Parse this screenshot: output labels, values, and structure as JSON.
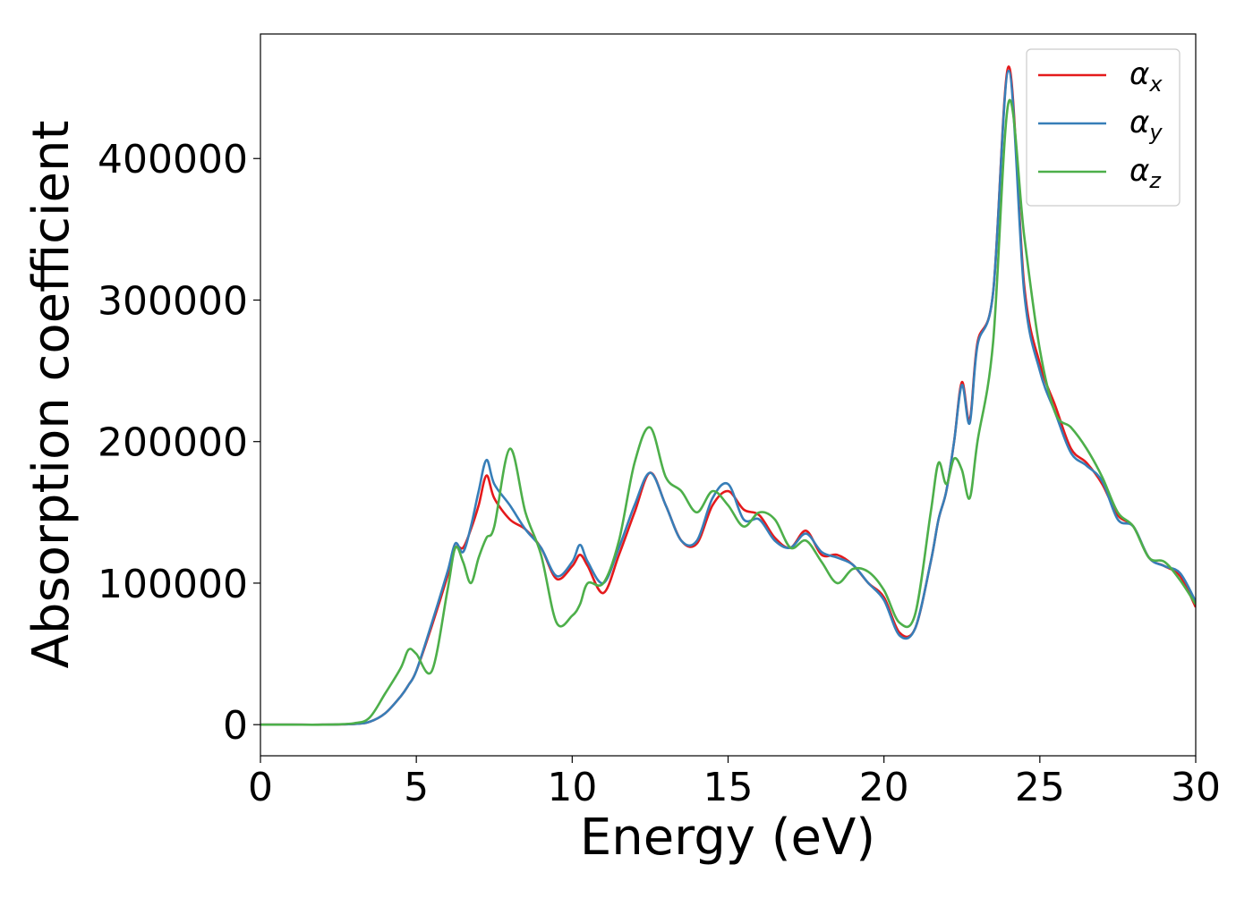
{
  "chart_data": {
    "type": "line",
    "xlabel": "Energy (eV)",
    "ylabel": "Absorption coefficient",
    "xlim": [
      0,
      30
    ],
    "xticks": [
      0,
      5,
      10,
      15,
      20,
      25,
      30
    ],
    "ylim": [
      -22000,
      488000
    ],
    "yticks": [
      0,
      100000,
      200000,
      300000,
      400000
    ],
    "legend": "upper right",
    "grid": false,
    "x": [
      0,
      1,
      2,
      3,
      3.5,
      4,
      4.5,
      4.75,
      5,
      5.5,
      6,
      6.25,
      6.5,
      6.75,
      7,
      7.25,
      7.5,
      8,
      8.5,
      9,
      9.5,
      10,
      10.25,
      10.5,
      11,
      11.5,
      12,
      12.5,
      13,
      13.5,
      14,
      14.5,
      15,
      15.5,
      16,
      16.5,
      17,
      17.5,
      18,
      18.5,
      19,
      19.5,
      20,
      20.5,
      21,
      21.5,
      21.75,
      22,
      22.25,
      22.5,
      22.75,
      23,
      23.5,
      24,
      24.5,
      25,
      25.5,
      26,
      26.5,
      27,
      27.5,
      28,
      28.5,
      29,
      29.5,
      30
    ],
    "series": [
      {
        "name": "αx",
        "color": "#e41a1c",
        "values": [
          0,
          0,
          0,
          500,
          2000,
          8000,
          20000,
          28000,
          38000,
          70000,
          105000,
          125000,
          125000,
          138000,
          155000,
          176000,
          160000,
          145000,
          138000,
          125000,
          103000,
          112000,
          120000,
          112000,
          93000,
          120000,
          150000,
          178000,
          155000,
          130000,
          128000,
          155000,
          165000,
          152000,
          148000,
          132000,
          125000,
          137000,
          120000,
          120000,
          113000,
          100000,
          90000,
          65000,
          68000,
          115000,
          145000,
          165000,
          200000,
          242000,
          215000,
          270000,
          305000,
          465000,
          310000,
          255000,
          225000,
          195000,
          185000,
          170000,
          148000,
          140000,
          118000,
          112000,
          105000,
          83000
        ]
      },
      {
        "name": "αy",
        "color": "#377eb8",
        "values": [
          0,
          0,
          0,
          500,
          2000,
          8000,
          20000,
          28000,
          38000,
          72000,
          108000,
          128000,
          122000,
          140000,
          165000,
          187000,
          170000,
          155000,
          138000,
          125000,
          105000,
          115000,
          127000,
          115000,
          100000,
          125000,
          155000,
          178000,
          155000,
          130000,
          130000,
          160000,
          170000,
          145000,
          145000,
          130000,
          125000,
          135000,
          122000,
          118000,
          113000,
          100000,
          88000,
          63000,
          68000,
          115000,
          145000,
          165000,
          200000,
          240000,
          213000,
          268000,
          305000,
          462000,
          305000,
          250000,
          220000,
          192000,
          183000,
          172000,
          145000,
          140000,
          118000,
          112000,
          107000,
          87000
        ]
      },
      {
        "name": "αz",
        "color": "#4daf4a",
        "values": [
          0,
          0,
          0,
          1000,
          5000,
          22000,
          40000,
          53000,
          50000,
          38000,
          95000,
          125000,
          115000,
          100000,
          118000,
          132000,
          140000,
          195000,
          150000,
          120000,
          72000,
          77000,
          85000,
          100000,
          100000,
          130000,
          185000,
          210000,
          175000,
          165000,
          150000,
          165000,
          155000,
          140000,
          150000,
          145000,
          125000,
          130000,
          115000,
          100000,
          110000,
          108000,
          95000,
          72000,
          78000,
          150000,
          185000,
          170000,
          188000,
          180000,
          160000,
          200000,
          270000,
          440000,
          345000,
          265000,
          220000,
          210000,
          195000,
          175000,
          150000,
          140000,
          118000,
          115000,
          102000,
          85000
        ]
      }
    ]
  }
}
